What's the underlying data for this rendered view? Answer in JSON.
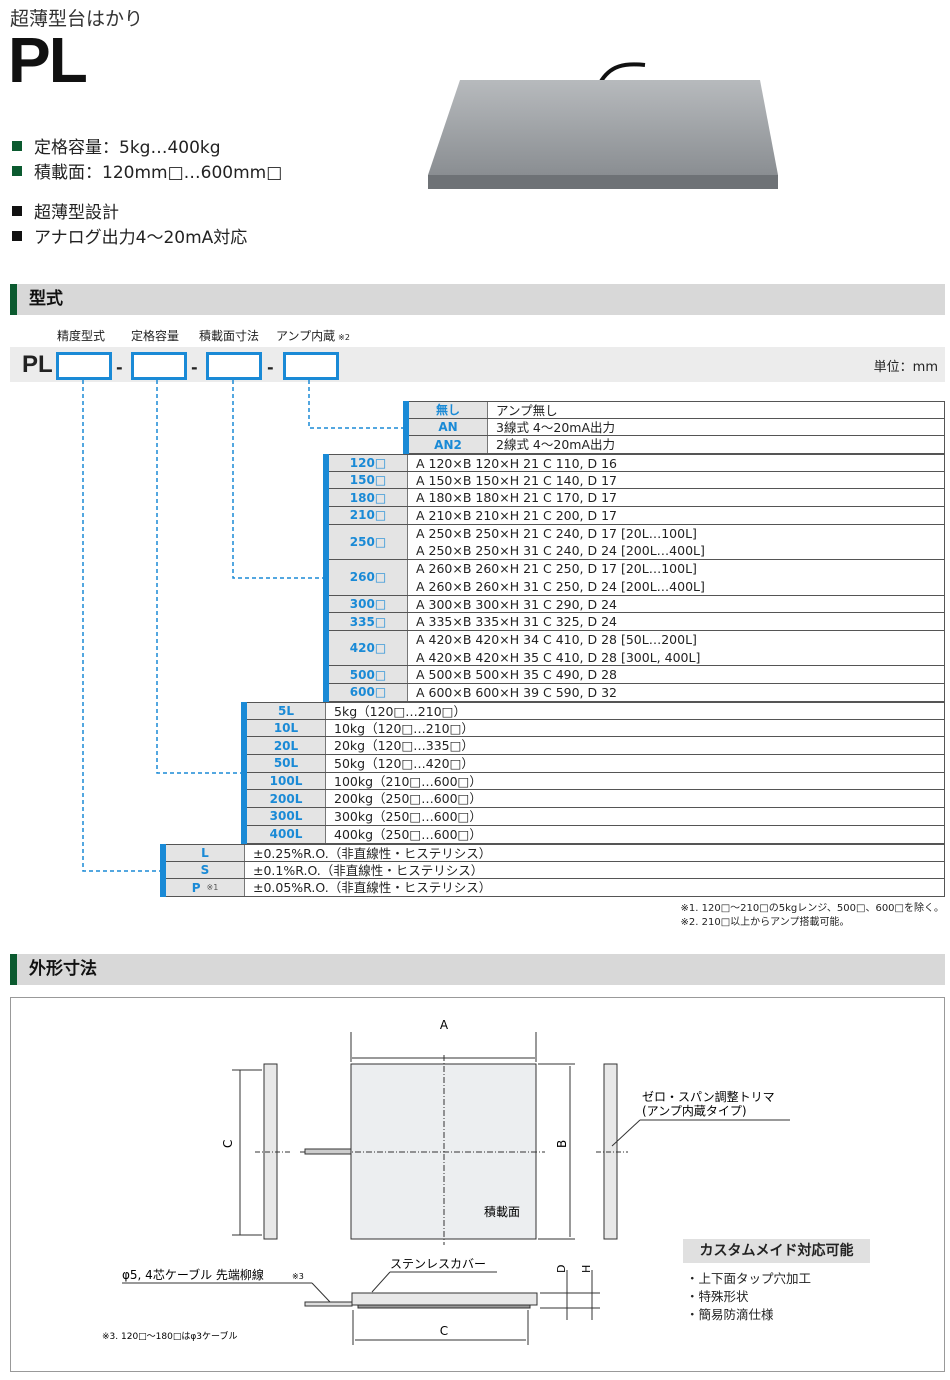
{
  "header": {
    "subtitle": "超薄型台はかり",
    "model": "PL"
  },
  "features": [
    {
      "text": "定格容量：5kg…400kg",
      "color": "#0b5a2f"
    },
    {
      "text": "積載面：120mm□…600mm□",
      "color": "#0b5a2f"
    },
    {
      "text": "超薄型設計",
      "color": "#111111"
    },
    {
      "text": "アナログ出力4～20mA対応",
      "color": "#111111"
    }
  ],
  "sections": {
    "model_code": "型式",
    "dimensions": "外形寸法"
  },
  "code_headers": {
    "accuracy": "精度型式",
    "capacity": "定格容量",
    "size": "積載面寸法",
    "amp": "アンプ内蔵",
    "amp_note": "※2"
  },
  "code_prefix": "PL",
  "separator": "-",
  "unit": "単位：mm",
  "colors": {
    "accent": "#1a8ad6",
    "section_bar": "#0b5a2f"
  },
  "groups": {
    "amp": [
      {
        "code": "無し",
        "lines": [
          "アンプ無し"
        ]
      },
      {
        "code": "AN",
        "lines": [
          "3線式 4～20mA出力"
        ]
      },
      {
        "code": "AN2",
        "lines": [
          "2線式 4～20mA出力"
        ]
      }
    ],
    "size": [
      {
        "code": "120□",
        "lines": [
          "A 120×B 120×H 21  C 110, D 16"
        ]
      },
      {
        "code": "150□",
        "lines": [
          "A 150×B 150×H 21  C 140, D 17"
        ]
      },
      {
        "code": "180□",
        "lines": [
          "A 180×B 180×H 21  C 170, D 17"
        ]
      },
      {
        "code": "210□",
        "lines": [
          "A 210×B 210×H 21  C 200, D 17"
        ]
      },
      {
        "code": "250□",
        "lines": [
          "A 250×B 250×H 21  C 240, D 17 [20L…100L]",
          "A 250×B 250×H 31  C 240, D 24 [200L…400L]"
        ]
      },
      {
        "code": "260□",
        "lines": [
          "A 260×B 260×H 21  C 250, D 17 [20L…100L]",
          "A 260×B 260×H 31  C 250, D 24 [200L…400L]"
        ]
      },
      {
        "code": "300□",
        "lines": [
          "A 300×B 300×H 31  C 290, D 24"
        ]
      },
      {
        "code": "335□",
        "lines": [
          "A 335×B 335×H 31  C 325, D 24"
        ]
      },
      {
        "code": "420□",
        "lines": [
          "A 420×B 420×H 34  C 410, D 28 [50L…200L]",
          "A 420×B 420×H 35  C 410, D 28 [300L, 400L]"
        ]
      },
      {
        "code": "500□",
        "lines": [
          "A 500×B 500×H 35  C 490, D 28"
        ]
      },
      {
        "code": "600□",
        "lines": [
          "A 600×B 600×H 39  C 590, D 32"
        ]
      }
    ],
    "capacity": [
      {
        "code": "5L",
        "lines": [
          "5kg（120□…210□）"
        ]
      },
      {
        "code": "10L",
        "lines": [
          "10kg（120□…210□）"
        ]
      },
      {
        "code": "20L",
        "lines": [
          "20kg（120□…335□）"
        ]
      },
      {
        "code": "50L",
        "lines": [
          "50kg（120□…420□）"
        ]
      },
      {
        "code": "100L",
        "lines": [
          "100kg（210□…600□）"
        ]
      },
      {
        "code": "200L",
        "lines": [
          "200kg（250□…600□）"
        ]
      },
      {
        "code": "300L",
        "lines": [
          "300kg（250□…600□）"
        ]
      },
      {
        "code": "400L",
        "lines": [
          "400kg（250□…600□）"
        ]
      }
    ],
    "accuracy": [
      {
        "code": "L",
        "lines": [
          "±0.25%R.O.（非直線性・ヒステリシス）"
        ]
      },
      {
        "code": "S",
        "lines": [
          "±0.1%R.O.（非直線性・ヒステリシス）"
        ]
      },
      {
        "code": "P",
        "note": "※1",
        "lines": [
          "±0.05%R.O.（非直線性・ヒステリシス）"
        ]
      }
    ]
  },
  "notes": [
    "※1. 120□～210□の5kgレンジ、500□、600□を除く。",
    "※2. 210□以上からアンプ搭載可能。"
  ],
  "drawing": {
    "label_a": "A",
    "label_b": "B",
    "label_c": "C",
    "label_c2": "C",
    "label_d": "D",
    "label_h": "H",
    "surface": "積載面",
    "trimmer": "ゼロ・スパン調整トリマ",
    "trimmer_sub": "(アンプ内蔵タイプ)",
    "cover": "ステンレスカバー",
    "cable": "φ5, 4芯ケーブル 先端柳線",
    "cable_note": "※3",
    "note3": "※3. 120□～180□はφ3ケーブル"
  },
  "custom": {
    "title": "カスタムメイド対応可能",
    "items": [
      "・上下面タップ穴加工",
      "・特殊形状",
      "・簡易防滴仕様"
    ]
  }
}
